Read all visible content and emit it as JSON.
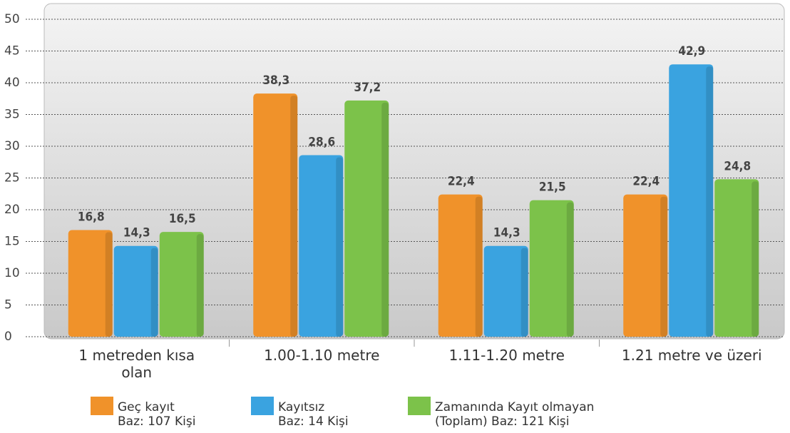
{
  "chart_data": {
    "type": "bar",
    "categories": [
      "1 metreden kısa\nolan",
      "1.00-1.10 metre",
      "1.11-1.20 metre",
      "1.21 metre ve üzeri"
    ],
    "series": [
      {
        "name": "Geç  kayıt\nBaz: 107 Kişi",
        "color": "#f0922a",
        "values": [
          16.8,
          38.3,
          22.4,
          22.4
        ],
        "value_labels": [
          "16,8",
          "38,3",
          "22,4",
          "22,4"
        ]
      },
      {
        "name": "Kayıtsız\nBaz: 14 Kişi",
        "color": "#3aa3e0",
        "values": [
          14.3,
          28.6,
          14.3,
          42.9
        ],
        "value_labels": [
          "14,3",
          "28,6",
          "14,3",
          "42,9"
        ]
      },
      {
        "name": "Zamanında Kayıt olmayan\n(Toplam) Baz: 121 Kişi",
        "color": "#7cc24a",
        "values": [
          16.5,
          37.2,
          21.5,
          24.8
        ],
        "value_labels": [
          "16,5",
          "37,2",
          "21,5",
          "24,8"
        ]
      }
    ],
    "ylim": [
      0,
      50
    ],
    "yticks": [
      0,
      5,
      10,
      15,
      20,
      25,
      30,
      35,
      40,
      45,
      50
    ],
    "grid": true,
    "legend": "bottom"
  }
}
